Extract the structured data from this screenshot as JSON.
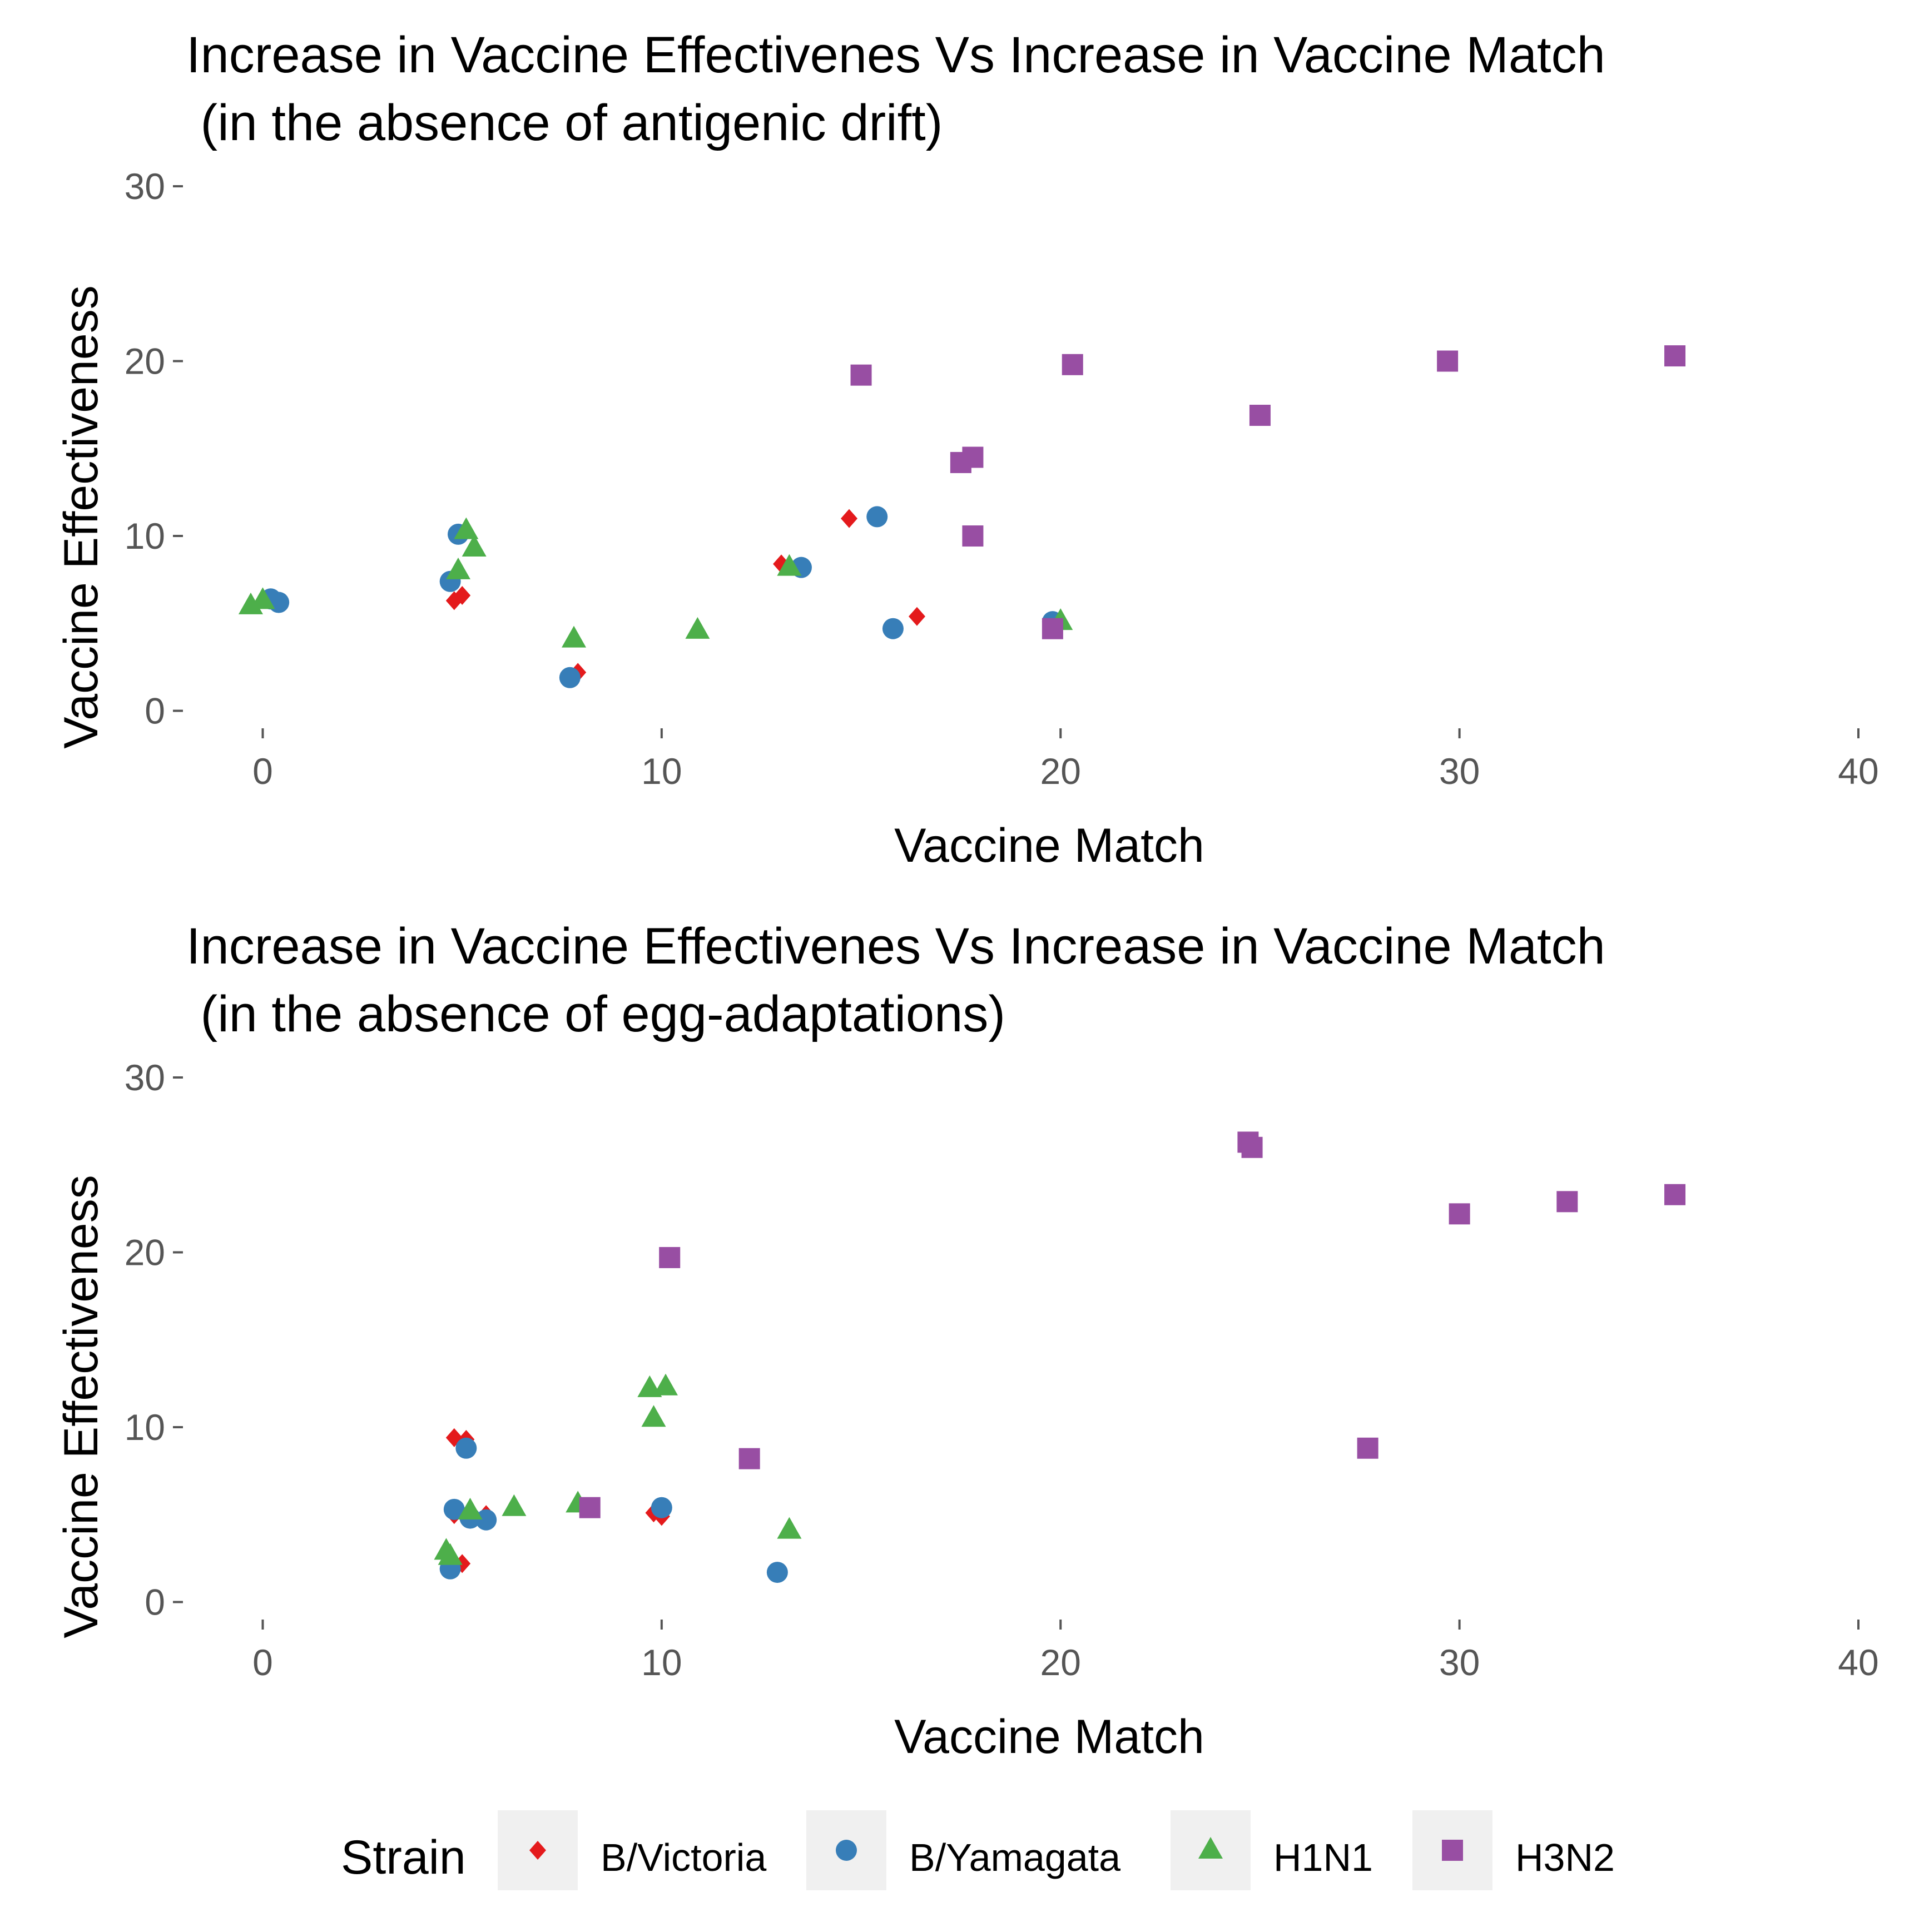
{
  "colors": {
    "B/Victoria": "#e41a1c",
    "B/Yamagata": "#377eb8",
    "H1N1": "#4daf4a",
    "H3N2": "#984ea3"
  },
  "legend": {
    "title": "Strain",
    "entries": [
      {
        "label": "B/Victoria",
        "shape": "diamond"
      },
      {
        "label": "B/Yamagata",
        "shape": "circle"
      },
      {
        "label": "H1N1",
        "shape": "triangle"
      },
      {
        "label": "H3N2",
        "shape": "square"
      }
    ]
  },
  "chart_data": [
    {
      "type": "scatter",
      "title_line1": "Increase in Vaccine Effectivenes Vs Increase in Vaccine Match",
      "title_line2": " (in the absence of antigenic drift)",
      "xlabel": "Vaccine Match",
      "ylabel": "Vaccine Effectiveness",
      "xlim": [
        -2,
        40
      ],
      "ylim": [
        -1,
        30
      ],
      "xticks": [
        0,
        10,
        20,
        30,
        40
      ],
      "yticks": [
        0,
        10,
        20,
        30
      ],
      "series": [
        {
          "name": "B/Victoria",
          "points": [
            [
              4.8,
              6.3
            ],
            [
              5.0,
              6.6
            ],
            [
              7.9,
              2.2
            ],
            [
              13.0,
              8.4
            ],
            [
              14.7,
              11.0
            ],
            [
              16.4,
              5.4
            ]
          ]
        },
        {
          "name": "B/Yamagata",
          "points": [
            [
              0.2,
              6.4
            ],
            [
              0.4,
              6.2
            ],
            [
              4.7,
              7.4
            ],
            [
              4.9,
              10.1
            ],
            [
              7.7,
              1.9
            ],
            [
              13.5,
              8.2
            ],
            [
              15.4,
              11.1
            ],
            [
              15.8,
              4.7
            ],
            [
              19.8,
              5.1
            ]
          ]
        },
        {
          "name": "H1N1",
          "points": [
            [
              -0.3,
              6.0
            ],
            [
              0.0,
              6.3
            ],
            [
              4.9,
              8.0
            ],
            [
              5.1,
              10.3
            ],
            [
              5.3,
              9.3
            ],
            [
              7.8,
              4.1
            ],
            [
              10.9,
              4.6
            ],
            [
              13.2,
              8.2
            ],
            [
              20.0,
              5.1
            ]
          ]
        },
        {
          "name": "H3N2",
          "points": [
            [
              15.0,
              19.2
            ],
            [
              17.5,
              14.2
            ],
            [
              17.8,
              14.5
            ],
            [
              17.8,
              10.0
            ],
            [
              19.8,
              4.7
            ],
            [
              20.3,
              19.8
            ],
            [
              25.0,
              16.9
            ],
            [
              29.7,
              20.0
            ],
            [
              35.4,
              20.3
            ]
          ]
        }
      ]
    },
    {
      "type": "scatter",
      "title_line1": "Increase in Vaccine Effectivenes Vs Increase in Vaccine Match",
      "title_line2": " (in the absence of egg-adaptations)",
      "xlabel": "Vaccine Match",
      "ylabel": "Vaccine Effectiveness",
      "xlim": [
        -2,
        40
      ],
      "ylim": [
        -1,
        30
      ],
      "xticks": [
        0,
        10,
        20,
        30,
        40
      ],
      "yticks": [
        0,
        10,
        20,
        30
      ],
      "series": [
        {
          "name": "B/Victoria",
          "points": [
            [
              4.8,
              9.4
            ],
            [
              5.1,
              9.3
            ],
            [
              4.8,
              5.0
            ],
            [
              5.0,
              2.2
            ],
            [
              5.6,
              5.0
            ],
            [
              9.8,
              5.1
            ],
            [
              10.0,
              4.9
            ]
          ]
        },
        {
          "name": "B/Yamagata",
          "points": [
            [
              4.7,
              1.9
            ],
            [
              4.8,
              5.3
            ],
            [
              5.1,
              8.8
            ],
            [
              5.2,
              4.8
            ],
            [
              5.6,
              4.7
            ],
            [
              10.0,
              5.4
            ],
            [
              12.9,
              1.7
            ]
          ]
        },
        {
          "name": "H1N1",
          "points": [
            [
              4.6,
              2.9
            ],
            [
              4.7,
              2.6
            ],
            [
              5.2,
              5.2
            ],
            [
              6.3,
              5.4
            ],
            [
              7.9,
              5.6
            ],
            [
              9.7,
              12.2
            ],
            [
              9.8,
              10.5
            ],
            [
              10.1,
              12.3
            ],
            [
              13.2,
              4.1
            ]
          ]
        },
        {
          "name": "H3N2",
          "points": [
            [
              8.2,
              5.4
            ],
            [
              10.2,
              19.7
            ],
            [
              12.2,
              8.2
            ],
            [
              24.7,
              26.3
            ],
            [
              24.8,
              26.0
            ],
            [
              27.7,
              8.8
            ],
            [
              30.0,
              22.2
            ],
            [
              32.7,
              22.9
            ],
            [
              35.4,
              23.3
            ]
          ]
        }
      ]
    }
  ]
}
